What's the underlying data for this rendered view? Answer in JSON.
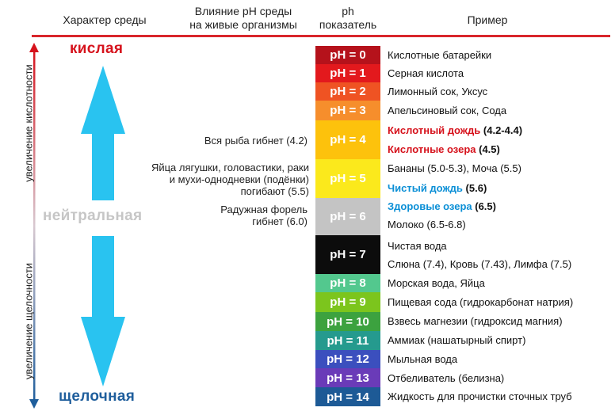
{
  "headers": {
    "character": "Характер среды",
    "influence_line1": "Влияние pH среды",
    "influence_line2": "на живые организмы",
    "ph_line1": "ph",
    "ph_line2": "показатель",
    "example": "Пример"
  },
  "side": {
    "acidity_increase": "увеличение кислотности",
    "alkalinity_increase": "увеличение щелочности"
  },
  "labels": {
    "acidic": "кислая",
    "neutral": "нейтральная",
    "alkaline": "щелочная"
  },
  "colors": {
    "acidic": "#d6121c",
    "neutral": "#c6c6c6",
    "alkaline": "#1f5e9c",
    "arrow": "#29c3f0"
  },
  "effects": [
    {
      "lines": [
        "Вся рыба гибнет (4.2)"
      ]
    },
    {
      "lines": [
        "Яйца лягушки, головастики, раки",
        "и мухи-однодневки (подёнки)",
        "погибают (5.5)"
      ]
    },
    {
      "lines": [
        "Радужная форель",
        "гибнет (6.0)"
      ]
    }
  ],
  "scale": [
    {
      "label": "pH = 0",
      "color": "#b5121b"
    },
    {
      "label": "pH = 1",
      "color": "#e3191d"
    },
    {
      "label": "pH = 2",
      "color": "#ef5323"
    },
    {
      "label": "pH = 3",
      "color": "#f68e2c"
    },
    {
      "label": "pH = 4",
      "color": "#fdc20c"
    },
    {
      "label": "pH = 5",
      "color": "#fbe91c"
    },
    {
      "label": "pH = 6",
      "color": "#c4c4c4"
    },
    {
      "label": "pH = 7",
      "color": "#0c0c0c"
    },
    {
      "label": "pH = 8",
      "color": "#53c88e"
    },
    {
      "label": "pH = 9",
      "color": "#7cc51d"
    },
    {
      "label": "pH = 10",
      "color": "#3ca23f"
    },
    {
      "label": "pH = 11",
      "color": "#259a8e"
    },
    {
      "label": "pH = 12",
      "color": "#3b4fbe"
    },
    {
      "label": "pH = 13",
      "color": "#6a3bb8"
    },
    {
      "label": "pH = 14",
      "color": "#1d5a96"
    }
  ],
  "examples": {
    "e0": "Кислотные батарейки",
    "e1": "Серная кислота",
    "e2": "Лимонный сок, Уксус",
    "e3": "Апельсиновый сок, Сода",
    "e4a_name": "Кислотный дождь",
    "e4a_val": "(4.2-4.4)",
    "e4b_name": "Кислотные озера",
    "e4b_val": "(4.5)",
    "e5a": "Бананы (5.0-5.3), Моча (5.5)",
    "e5b_name": "Чистый дождь",
    "e5b_val": "(5.6)",
    "e6a_name": "Здоровые озера",
    "e6a_val": "(6.5)",
    "e6b": "Молоко (6.5-6.8)",
    "e7a": "Чистая вода",
    "e7b": "Слюна (7.4), Кровь (7.43), Лимфа (7.5)",
    "e8": "Морская вода, Яйца",
    "e9": "Пищевая сода (гидрокарбонат натрия)",
    "e10": "Взвесь магнезии (гидроксид магния)",
    "e11": "Аммиак (нашатырный спирт)",
    "e12": "Мыльная вода",
    "e13": "Отбеливатель (белизна)",
    "e14": "Жидкость для прочистки сточных труб"
  }
}
